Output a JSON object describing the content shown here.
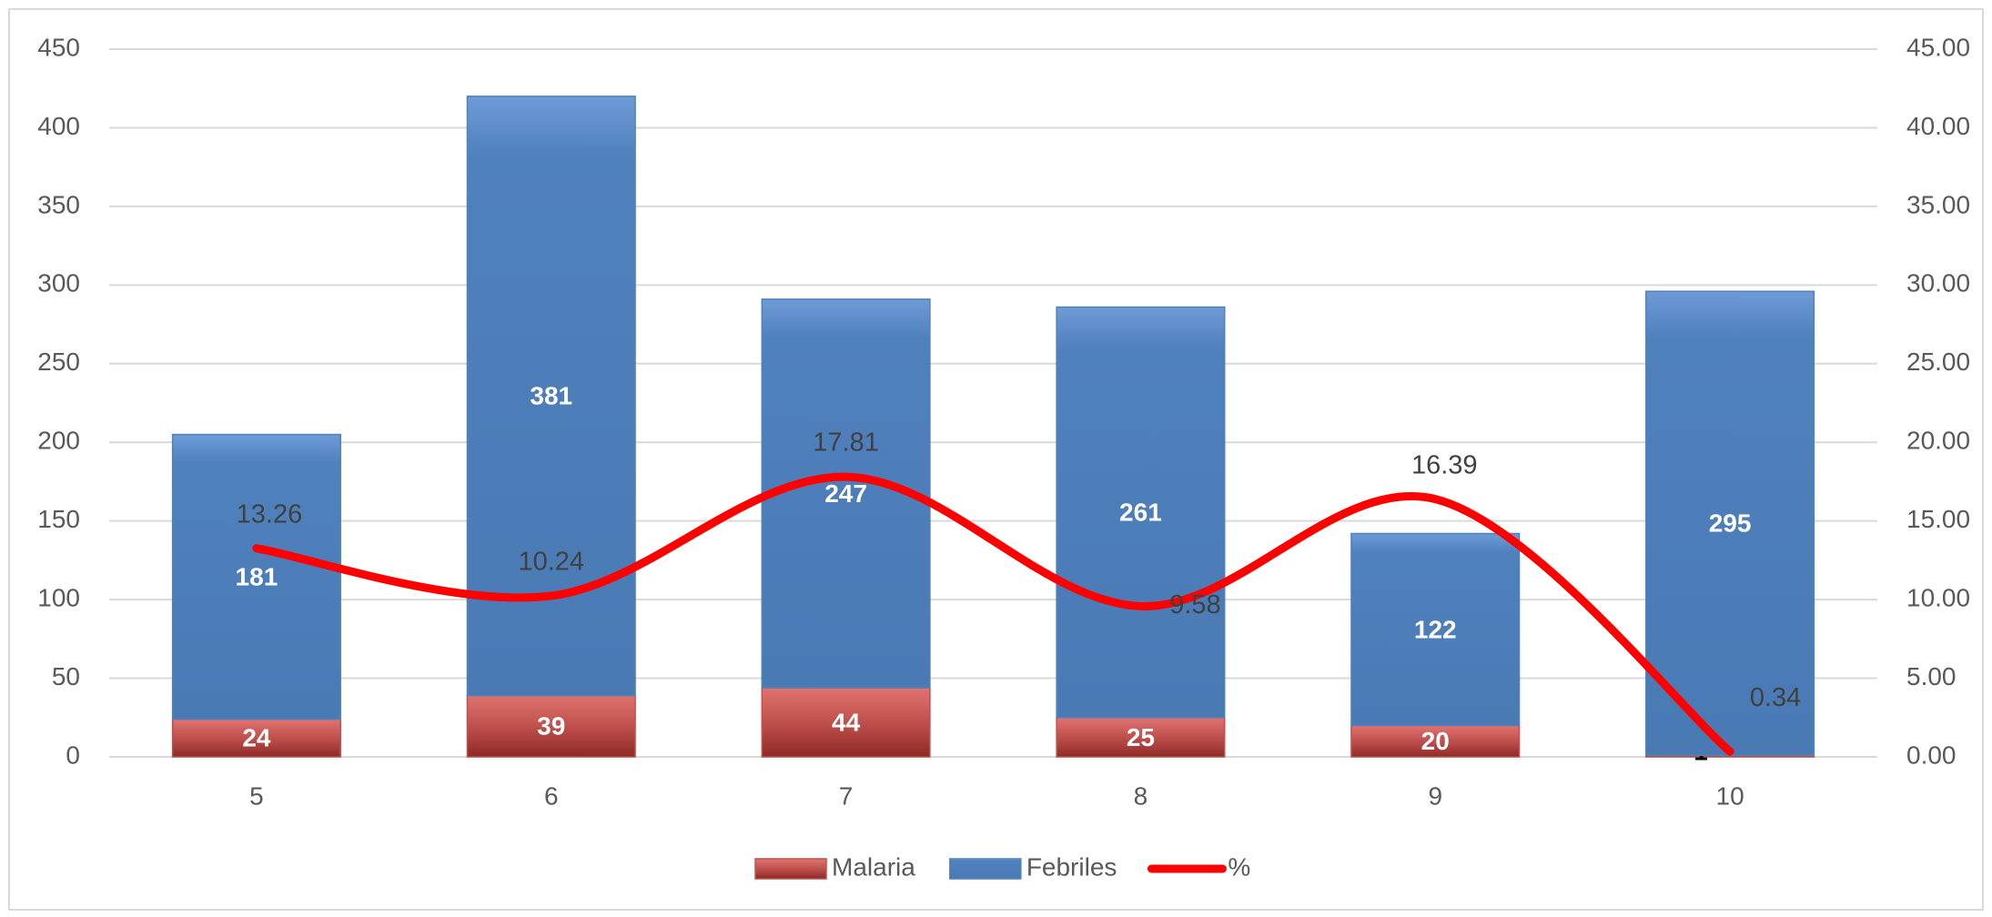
{
  "chart_data": {
    "type": "bar",
    "stacked": true,
    "categories": [
      "5",
      "6",
      "7",
      "8",
      "9",
      "10"
    ],
    "series": [
      {
        "name": "Malaria",
        "color": "#c0504d",
        "values": [
          24,
          39,
          44,
          25,
          20,
          1
        ]
      },
      {
        "name": "Febriles",
        "color": "#4f81bd",
        "values": [
          181,
          381,
          247,
          261,
          122,
          295
        ]
      },
      {
        "name": "%",
        "color": "#ff0000",
        "type": "line",
        "axis": "y2",
        "values": [
          13.26,
          10.24,
          17.81,
          9.58,
          16.39,
          0.34
        ]
      }
    ],
    "ylim": [
      0,
      450
    ],
    "yticks": [
      0,
      50,
      100,
      150,
      200,
      250,
      300,
      350,
      400,
      450
    ],
    "y2lim": [
      0,
      45
    ],
    "y2ticks": [
      {
        "value": 0,
        "label": "0.00"
      },
      {
        "value": 5,
        "label": "5.00"
      },
      {
        "value": 10,
        "label": "10.00"
      },
      {
        "value": 15,
        "label": "15.00"
      },
      {
        "value": 20,
        "label": "20.00"
      },
      {
        "value": 25,
        "label": "25.00"
      },
      {
        "value": 30,
        "label": "30.00"
      },
      {
        "value": 35,
        "label": "35.00"
      },
      {
        "value": 40,
        "label": "40.00"
      },
      {
        "value": 45,
        "label": "45.00"
      }
    ],
    "grid": true,
    "legend": "bottom"
  }
}
